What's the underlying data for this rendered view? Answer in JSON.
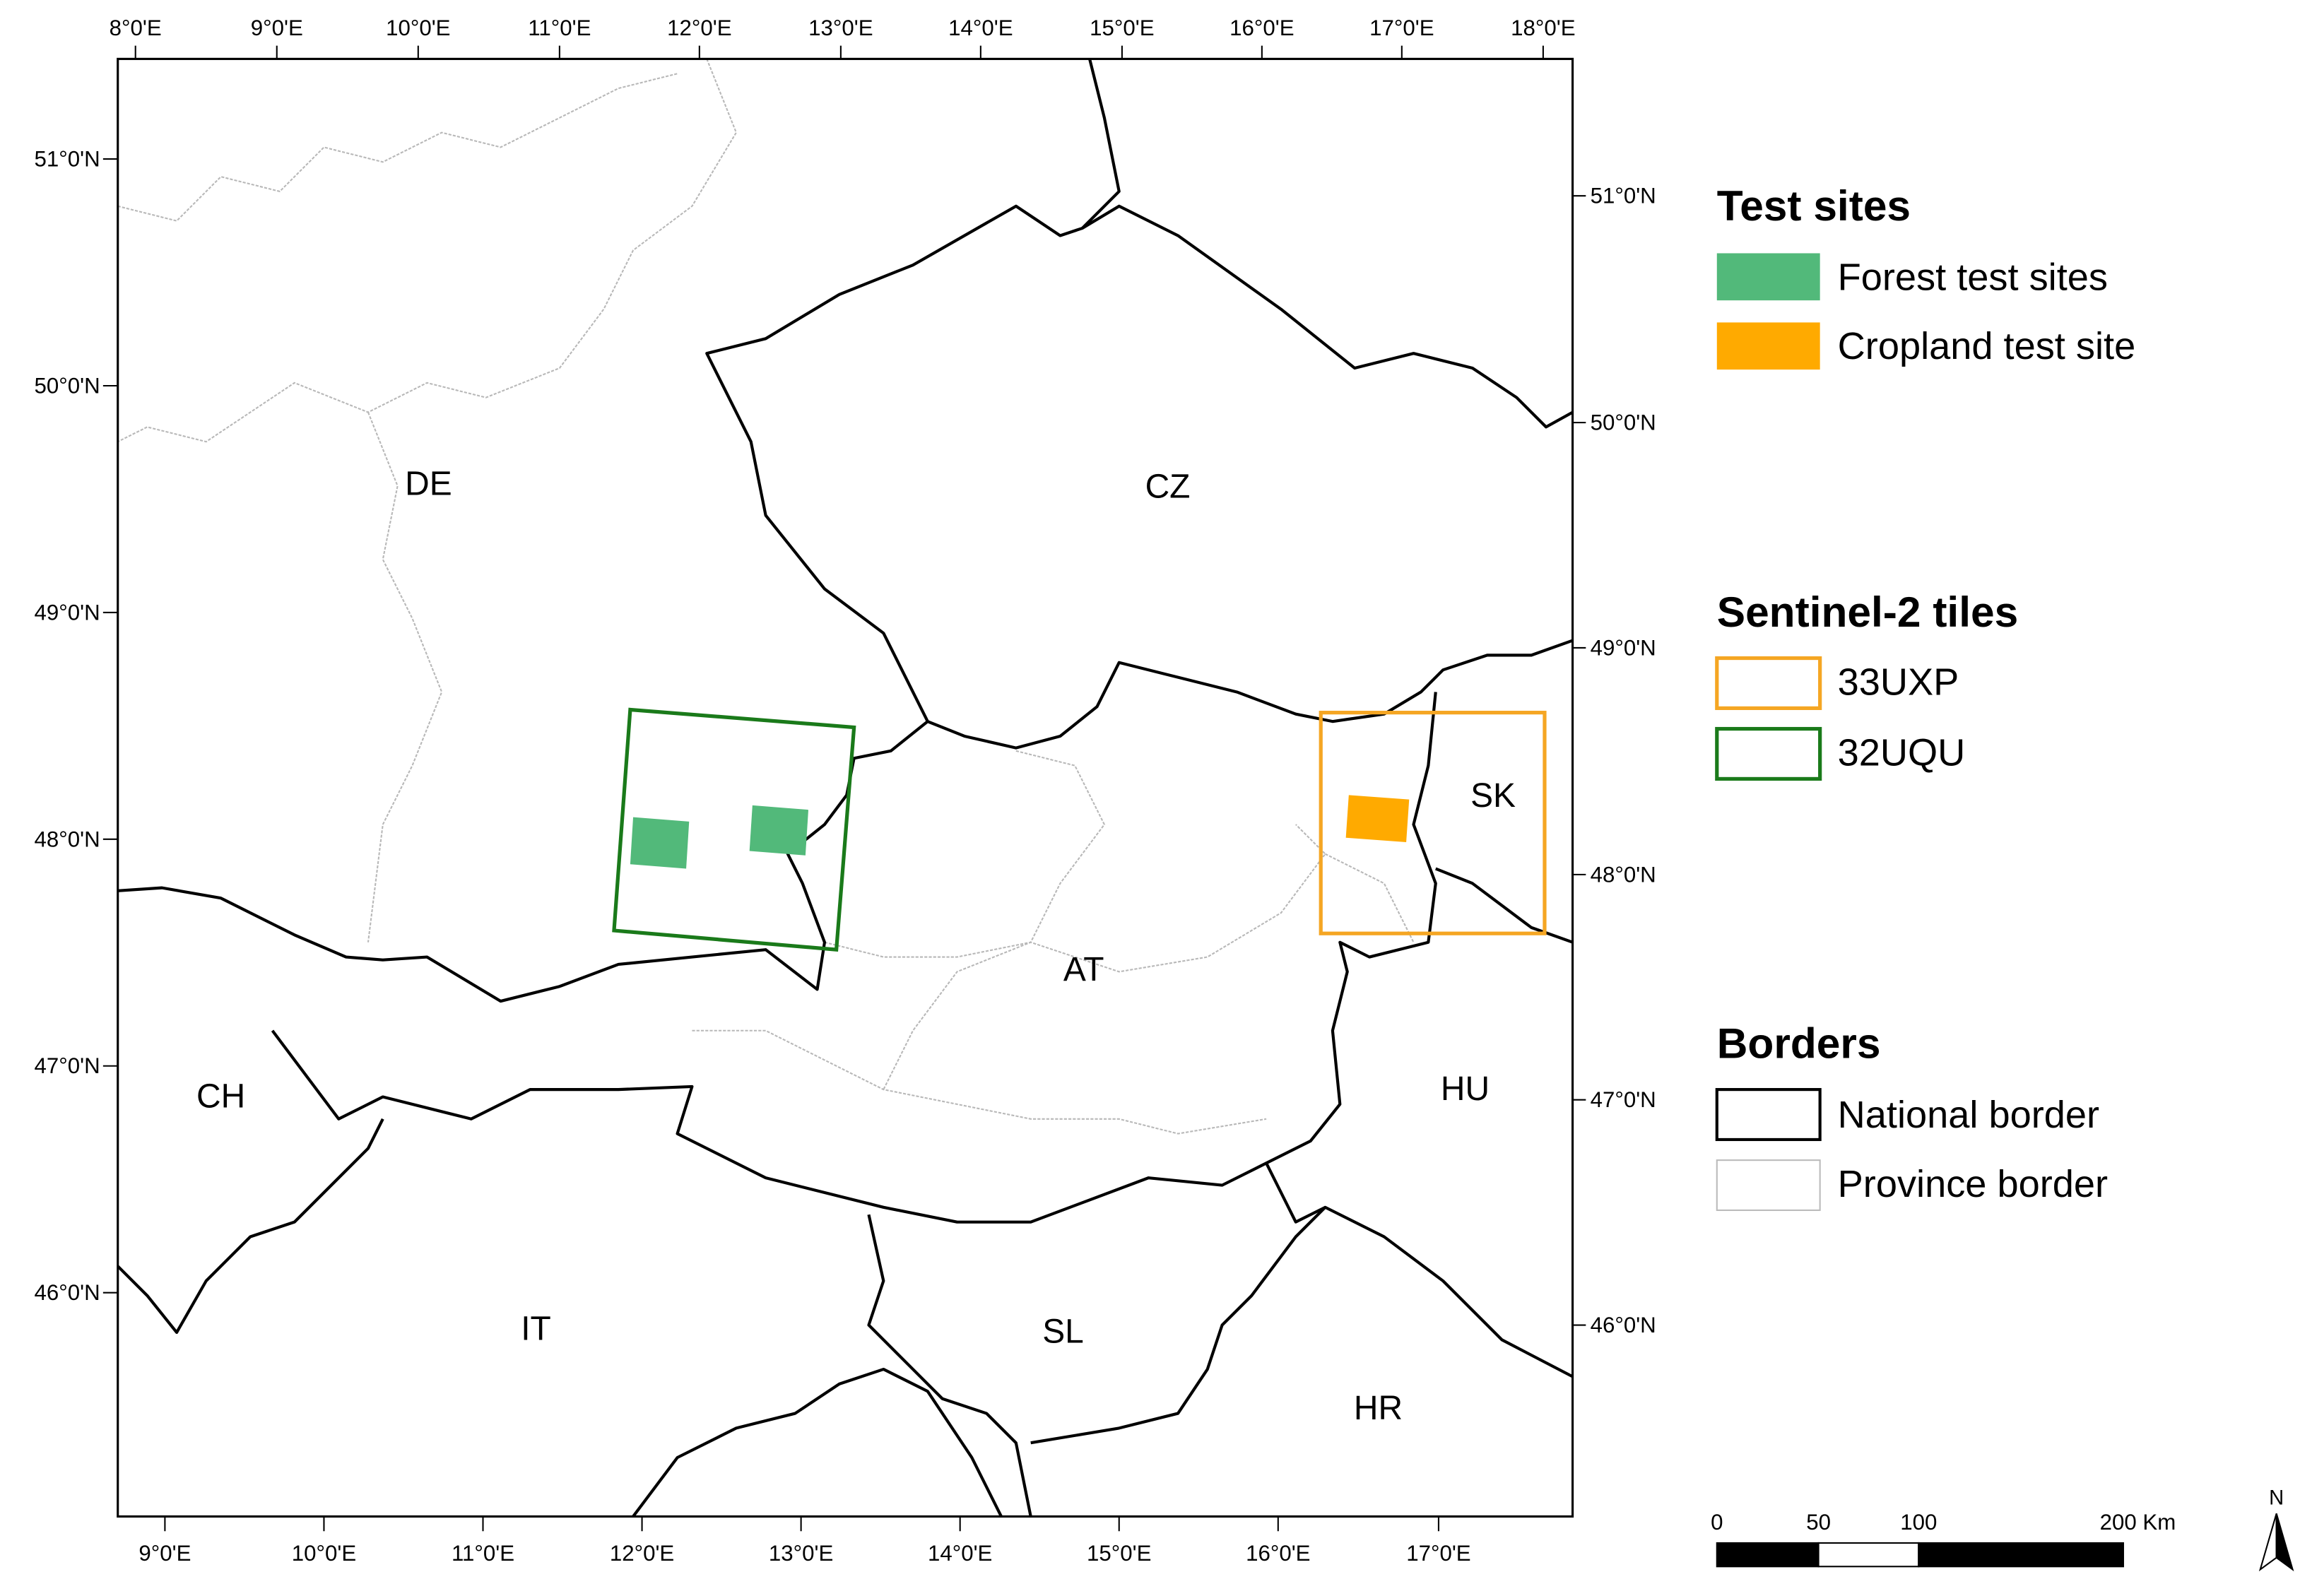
{
  "map": {
    "top_labels": [
      "8°0'E",
      "9°0'E",
      "10°0'E",
      "11°0'E",
      "12°0'E",
      "13°0'E",
      "14°0'E",
      "15°0'E",
      "16°0'E",
      "17°0'E",
      "18°0'E"
    ],
    "bottom_labels": [
      "9°0'E",
      "10°0'E",
      "11°0'E",
      "12°0'E",
      "13°0'E",
      "14°0'E",
      "15°0'E",
      "16°0'E",
      "17°0'E"
    ],
    "left_labels": [
      "51°0'N",
      "50°0'N",
      "49°0'N",
      "48°0'N",
      "47°0'N",
      "46°0'N"
    ],
    "right_labels": [
      "51°0'N",
      "50°0'N",
      "49°0'N",
      "48°0'N",
      "47°0'N",
      "46°0'N"
    ],
    "countries": [
      "DE",
      "CZ",
      "SK",
      "AT",
      "CH",
      "HU",
      "IT",
      "SL",
      "HR"
    ]
  },
  "legend": {
    "test_sites": {
      "title": "Test sites",
      "items": [
        "Forest test sites",
        "Cropland test site"
      ]
    },
    "tiles": {
      "title": "Sentinel-2 tiles",
      "items": [
        "33UXP",
        "32UQU"
      ]
    },
    "borders": {
      "title": "Borders",
      "items": [
        "National border",
        "Province border"
      ]
    }
  },
  "scale_bar": {
    "labels": [
      "0",
      "50",
      "100",
      "200 Km"
    ]
  },
  "north_arrow": {
    "label": "N"
  }
}
